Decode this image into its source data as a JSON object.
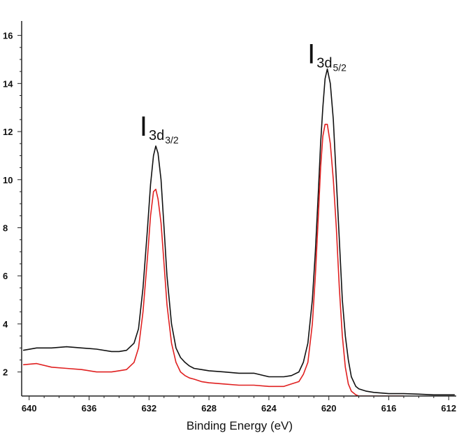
{
  "chart_data": {
    "type": "line",
    "title": "",
    "xlabel": "Binding Energy (eV)",
    "ylabel": "",
    "xlim": [
      640.5,
      611.5
    ],
    "ylim": [
      1.0,
      16.6
    ],
    "x_reversed": true,
    "grid": false,
    "legend": "none",
    "x_ticks": [
      640,
      636,
      632,
      628,
      624,
      620,
      616,
      612
    ],
    "x_tick_labels": [
      "640",
      "636",
      "632",
      "628",
      "624",
      "620",
      "616",
      "612"
    ],
    "y_ticks": [
      2,
      4,
      6,
      8,
      10,
      12,
      14,
      16
    ],
    "y_tick_labels": [
      "2",
      "4",
      "6",
      "8",
      "10",
      "12",
      "14",
      "16"
    ],
    "annotations": [
      {
        "main": "I",
        "sub": "3d",
        "subsub": "3/2",
        "x": 631.6,
        "y": 11.6
      },
      {
        "main": "I",
        "sub": "3d",
        "subsub": "5/2",
        "x": 620.4,
        "y": 14.6
      }
    ],
    "series": [
      {
        "color": "#111111",
        "x": [
          640.4,
          639.5,
          638.5,
          637.5,
          636.5,
          635.5,
          634.5,
          634.0,
          633.5,
          633.0,
          632.7,
          632.4,
          632.1,
          631.9,
          631.7,
          631.55,
          631.4,
          631.2,
          631.0,
          630.8,
          630.5,
          630.2,
          629.9,
          629.6,
          629.3,
          629.0,
          628.5,
          628.0,
          627.0,
          626.0,
          625.0,
          624.0,
          623.0,
          622.5,
          622.0,
          621.7,
          621.4,
          621.1,
          620.9,
          620.7,
          620.55,
          620.4,
          620.25,
          620.1,
          619.9,
          619.7,
          619.5,
          619.3,
          619.1,
          618.9,
          618.7,
          618.5,
          618.2,
          618.0,
          617.5,
          617.0,
          616.0,
          615.0,
          614.0,
          613.0,
          612.0,
          611.6
        ],
        "y": [
          2.9,
          3.0,
          3.0,
          3.05,
          3.0,
          2.95,
          2.85,
          2.85,
          2.9,
          3.2,
          3.8,
          5.5,
          8.0,
          9.8,
          11.0,
          11.4,
          11.1,
          10.0,
          8.0,
          6.0,
          4.0,
          3.0,
          2.6,
          2.4,
          2.25,
          2.15,
          2.1,
          2.05,
          2.0,
          1.95,
          1.95,
          1.8,
          1.8,
          1.85,
          2.0,
          2.4,
          3.2,
          5.0,
          7.0,
          9.5,
          11.5,
          13.0,
          14.2,
          14.6,
          14.0,
          12.5,
          10.0,
          7.5,
          5.0,
          3.5,
          2.5,
          1.8,
          1.4,
          1.3,
          1.2,
          1.15,
          1.1,
          1.1,
          1.08,
          1.05,
          1.05,
          1.05
        ]
      },
      {
        "color": "#e02020",
        "x": [
          640.4,
          639.5,
          638.5,
          637.5,
          636.5,
          635.5,
          634.5,
          634.0,
          633.5,
          633.0,
          632.7,
          632.4,
          632.1,
          631.9,
          631.7,
          631.55,
          631.4,
          631.2,
          631.0,
          630.8,
          630.5,
          630.2,
          629.9,
          629.6,
          629.3,
          629.0,
          628.5,
          628.0,
          627.0,
          626.0,
          625.0,
          624.0,
          623.0,
          622.5,
          622.0,
          621.7,
          621.4,
          621.1,
          620.9,
          620.7,
          620.55,
          620.4,
          620.25,
          620.1,
          619.9,
          619.7,
          619.5,
          619.3,
          619.1,
          618.9,
          618.7,
          618.5,
          618.2,
          618.0,
          617.5,
          617.0,
          616.0,
          615.0
        ],
        "y": [
          2.3,
          2.35,
          2.2,
          2.15,
          2.1,
          2.0,
          2.0,
          2.05,
          2.1,
          2.4,
          3.0,
          4.5,
          6.8,
          8.5,
          9.5,
          9.6,
          9.2,
          8.2,
          6.5,
          4.8,
          3.2,
          2.4,
          2.0,
          1.85,
          1.75,
          1.7,
          1.6,
          1.55,
          1.5,
          1.45,
          1.45,
          1.4,
          1.4,
          1.5,
          1.6,
          1.9,
          2.4,
          4.0,
          6.0,
          8.5,
          10.5,
          11.8,
          12.3,
          12.3,
          11.5,
          10.0,
          8.0,
          5.5,
          3.5,
          2.2,
          1.5,
          1.2,
          1.05,
          1.0,
          1.0,
          1.0,
          1.0,
          1.0
        ]
      }
    ]
  }
}
